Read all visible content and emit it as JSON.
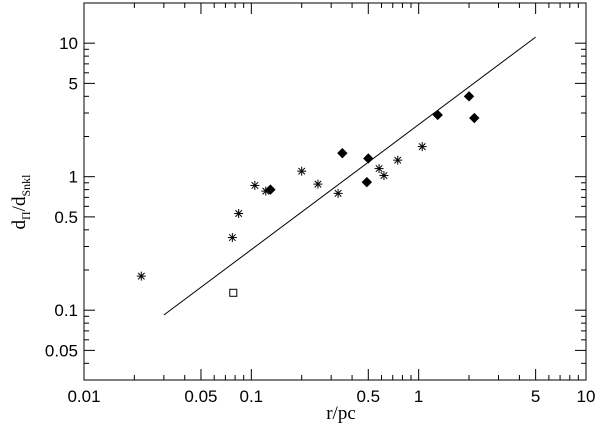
{
  "chart_data": {
    "type": "scatter",
    "xscale": "log",
    "yscale": "log",
    "xlim": [
      0.01,
      10
    ],
    "ylim": [
      0.03,
      20
    ],
    "xlabel": "r/pc",
    "ylabel_main": "d",
    "ylabel_sub1": "Π",
    "ylabel_slash": "/d",
    "ylabel_sub2": "Snkl",
    "x_ticks": [
      {
        "value": 0.01,
        "label": "0.01"
      },
      {
        "value": 0.05,
        "label": "0.05"
      },
      {
        "value": 0.1,
        "label": "0.1"
      },
      {
        "value": 0.5,
        "label": "0.5"
      },
      {
        "value": 1,
        "label": "1"
      },
      {
        "value": 5,
        "label": "5"
      },
      {
        "value": 10,
        "label": "10"
      }
    ],
    "y_ticks": [
      {
        "value": 0.05,
        "label": "0.05"
      },
      {
        "value": 0.1,
        "label": "0.1"
      },
      {
        "value": 0.5,
        "label": "0.5"
      },
      {
        "value": 1,
        "label": "1"
      },
      {
        "value": 5,
        "label": "5"
      },
      {
        "value": 10,
        "label": "10"
      }
    ],
    "grid": false,
    "fit_line": {
      "x": [
        0.03,
        5.0
      ],
      "y": [
        0.092,
        11.1
      ]
    },
    "series": [
      {
        "marker": "asterisk",
        "points": [
          {
            "x": 0.022,
            "y": 0.18
          },
          {
            "x": 0.077,
            "y": 0.35
          },
          {
            "x": 0.084,
            "y": 0.53
          },
          {
            "x": 0.105,
            "y": 0.86
          },
          {
            "x": 0.122,
            "y": 0.78
          },
          {
            "x": 0.2,
            "y": 1.1
          },
          {
            "x": 0.25,
            "y": 0.88
          },
          {
            "x": 0.33,
            "y": 0.75
          },
          {
            "x": 0.58,
            "y": 1.15
          },
          {
            "x": 0.62,
            "y": 1.02
          },
          {
            "x": 0.75,
            "y": 1.33
          },
          {
            "x": 1.05,
            "y": 1.68
          }
        ]
      },
      {
        "marker": "diamond",
        "points": [
          {
            "x": 0.13,
            "y": 0.8
          },
          {
            "x": 0.35,
            "y": 1.5
          },
          {
            "x": 0.49,
            "y": 0.91
          },
          {
            "x": 0.5,
            "y": 1.37
          },
          {
            "x": 1.3,
            "y": 2.9
          },
          {
            "x": 2.0,
            "y": 4.0
          },
          {
            "x": 2.15,
            "y": 2.75
          }
        ]
      },
      {
        "marker": "open-square",
        "points": [
          {
            "x": 0.078,
            "y": 0.135
          }
        ]
      }
    ]
  }
}
